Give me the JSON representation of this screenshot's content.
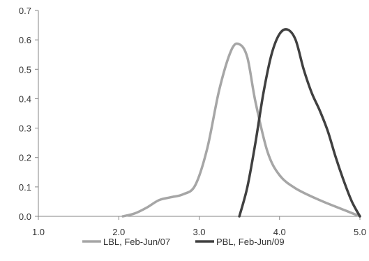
{
  "chart_data": {
    "type": "line",
    "title": "",
    "xlabel": "",
    "ylabel": "",
    "xlim": [
      1.0,
      5.0
    ],
    "ylim": [
      0,
      0.7
    ],
    "x_ticks": [
      "1.0",
      "2.0",
      "3.0",
      "4.0",
      "5.0"
    ],
    "y_ticks": [
      "0.0",
      "0.1",
      "0.2",
      "0.3",
      "0.4",
      "0.5",
      "0.6",
      "0.7"
    ],
    "grid": false,
    "legend_position": "bottom",
    "series": [
      {
        "name": "LBL, Feb-Jun/07",
        "color": "#a6a6a6",
        "points": [
          [
            2.05,
            0.0
          ],
          [
            2.2,
            0.01
          ],
          [
            2.35,
            0.03
          ],
          [
            2.5,
            0.055
          ],
          [
            2.65,
            0.065
          ],
          [
            2.8,
            0.075
          ],
          [
            2.95,
            0.105
          ],
          [
            3.1,
            0.23
          ],
          [
            3.25,
            0.43
          ],
          [
            3.4,
            0.565
          ],
          [
            3.5,
            0.585
          ],
          [
            3.6,
            0.54
          ],
          [
            3.7,
            0.39
          ],
          [
            3.85,
            0.22
          ],
          [
            4.0,
            0.14
          ],
          [
            4.2,
            0.095
          ],
          [
            4.5,
            0.055
          ],
          [
            4.8,
            0.022
          ],
          [
            5.0,
            0.0
          ]
        ]
      },
      {
        "name": "PBL, Feb-Jun/09",
        "color": "#404040",
        "points": [
          [
            3.5,
            0.0
          ],
          [
            3.6,
            0.1
          ],
          [
            3.7,
            0.25
          ],
          [
            3.8,
            0.42
          ],
          [
            3.9,
            0.55
          ],
          [
            4.0,
            0.62
          ],
          [
            4.1,
            0.635
          ],
          [
            4.2,
            0.6
          ],
          [
            4.3,
            0.5
          ],
          [
            4.4,
            0.42
          ],
          [
            4.5,
            0.36
          ],
          [
            4.6,
            0.29
          ],
          [
            4.7,
            0.2
          ],
          [
            4.8,
            0.12
          ],
          [
            4.9,
            0.05
          ],
          [
            5.0,
            0.0
          ]
        ]
      }
    ]
  }
}
